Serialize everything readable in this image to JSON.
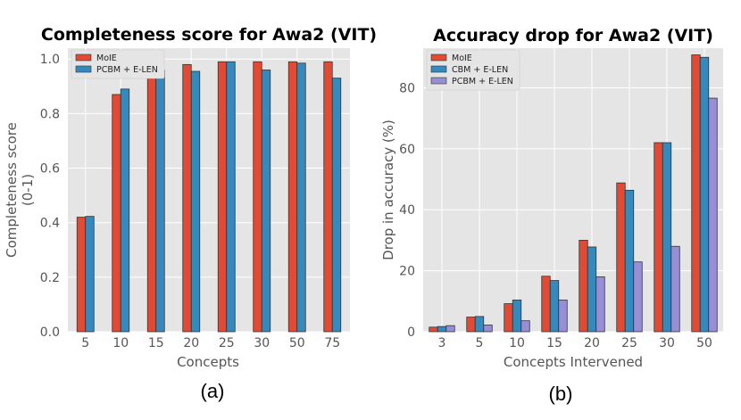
{
  "chart_data": [
    {
      "type": "bar",
      "title": "Completeness score for Awa2 (VIT)",
      "xlabel": "Concepts",
      "ylabel": "Completeness score\n(0-1)",
      "categories": [
        "5",
        "10",
        "15",
        "20",
        "25",
        "30",
        "50",
        "75"
      ],
      "series": [
        {
          "name": "MoIE",
          "color": "#e24a33",
          "values": [
            0.42,
            0.87,
            0.97,
            0.98,
            0.99,
            0.99,
            0.99,
            0.99
          ]
        },
        {
          "name": "PCBM + E-LEN",
          "color": "#348abd",
          "values": [
            0.423,
            0.89,
            0.96,
            0.955,
            0.99,
            0.96,
            0.985,
            0.93
          ]
        }
      ],
      "ylim": [
        0,
        1.04
      ],
      "yticks": [
        0.0,
        0.2,
        0.4,
        0.6,
        0.8,
        1.0
      ],
      "ytick_labels": [
        "0.0",
        "0.2",
        "0.4",
        "0.6",
        "0.8",
        "1.0"
      ],
      "grid": true,
      "legend_position": "top-left",
      "panel_label": "(a)"
    },
    {
      "type": "bar",
      "title": "Accuracy drop for Awa2 (VIT)",
      "xlabel": "Concepts Intervened",
      "ylabel": "Drop in accuracy (%)",
      "categories": [
        "3",
        "5",
        "10",
        "15",
        "20",
        "25",
        "30",
        "50"
      ],
      "series": [
        {
          "name": "MoIE",
          "color": "#e24a33",
          "values": [
            1.5,
            4.8,
            9.2,
            18.2,
            30.0,
            48.8,
            62.0,
            90.8
          ]
        },
        {
          "name": "CBM + E-LEN",
          "color": "#348abd",
          "values": [
            1.7,
            5.0,
            10.4,
            16.8,
            27.8,
            46.4,
            62.0,
            90.0
          ]
        },
        {
          "name": "PCBM + E-LEN",
          "color": "#988ed5",
          "values": [
            2.0,
            2.2,
            3.6,
            10.4,
            18.0,
            22.9,
            28.0,
            76.6
          ]
        }
      ],
      "ylim": [
        0,
        93
      ],
      "yticks": [
        0,
        20,
        40,
        60,
        80
      ],
      "ytick_labels": [
        "0",
        "20",
        "40",
        "60",
        "80"
      ],
      "grid": true,
      "legend_position": "top-left",
      "panel_label": "(b)"
    }
  ]
}
